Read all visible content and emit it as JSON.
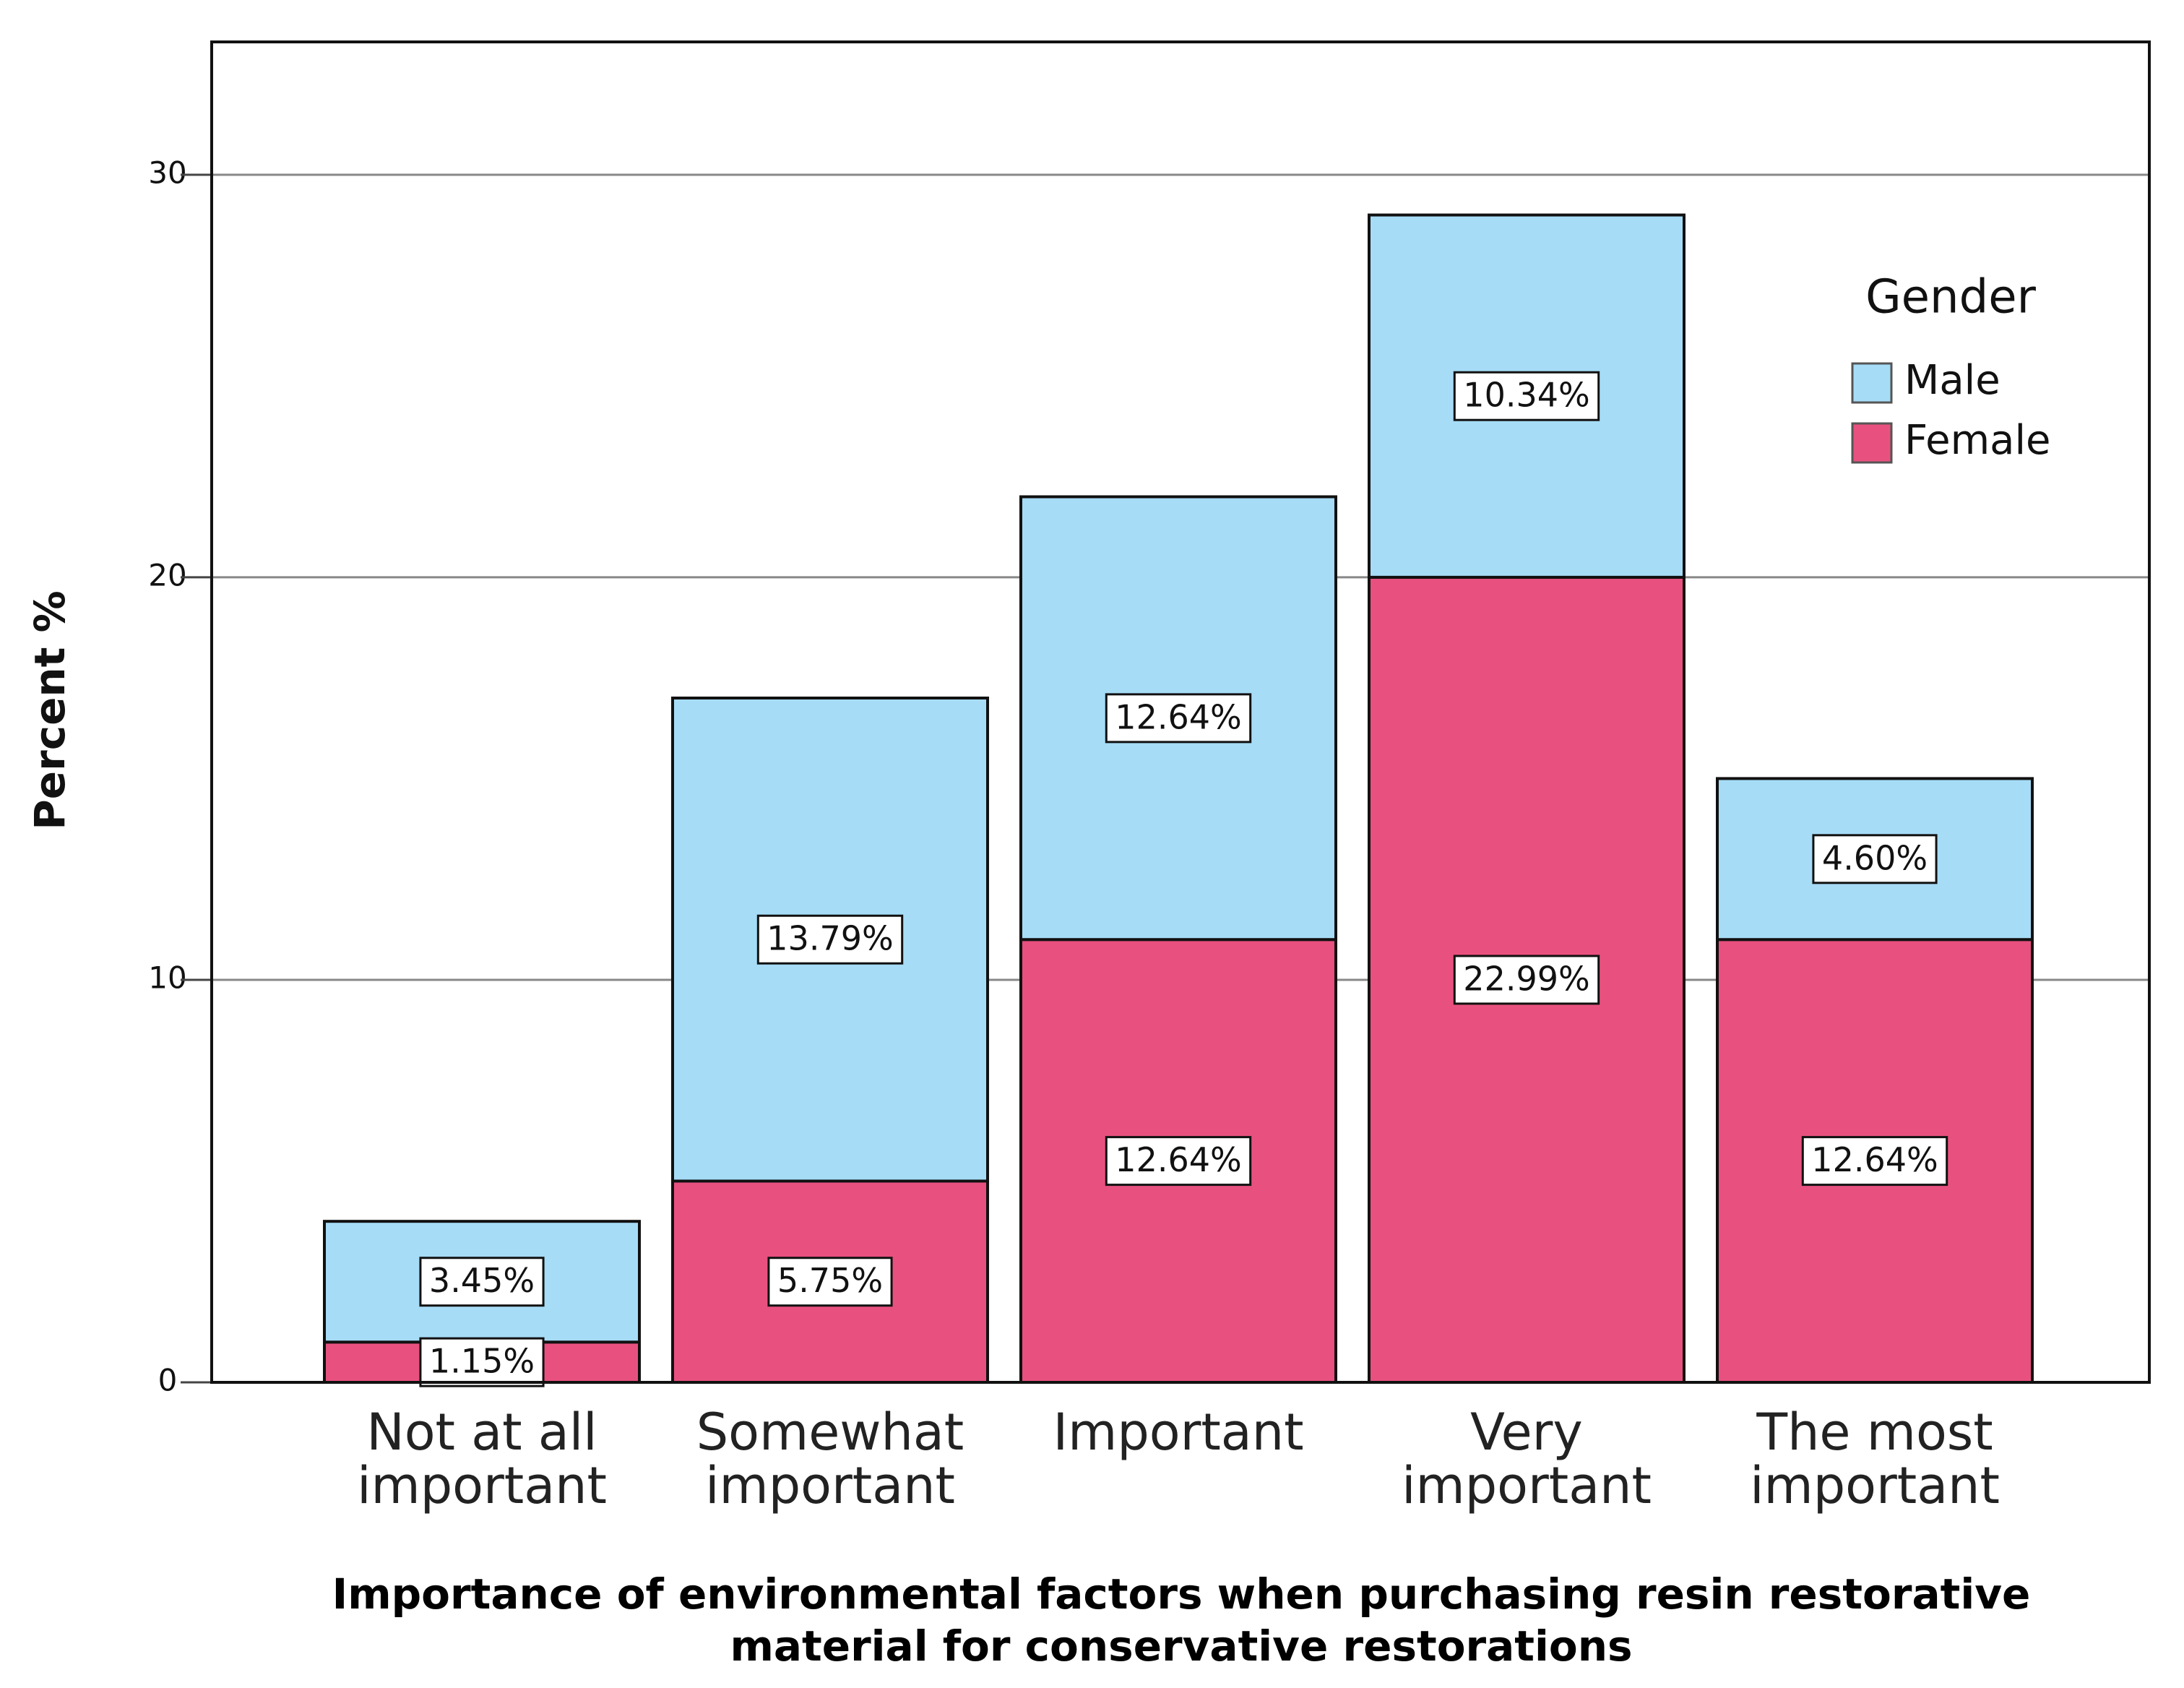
{
  "chart_data": {
    "type": "stacked-bar",
    "x_label": "Importance of environmental factors when purchasing resin restorative material for conservative restorations",
    "y_label": "Percent %",
    "legend_title": "Gender",
    "categories": [
      "Not at all important",
      "Somewhat important",
      "Important",
      "Very important",
      "The most important"
    ],
    "series": [
      {
        "name": "Female",
        "color": "#e8517f",
        "values": [
          1,
          5,
          11,
          20,
          11
        ],
        "labels": [
          "1.15%",
          "5.75%",
          "12.64%",
          "22.99%",
          "12.64%"
        ]
      },
      {
        "name": "Male",
        "color": "#a6dcf6",
        "values": [
          3,
          12,
          11,
          9,
          4
        ],
        "labels": [
          "3.45%",
          "13.79%",
          "12.64%",
          "10.34%",
          "4.60%"
        ]
      }
    ],
    "ylim": [
      0,
      33.3
    ],
    "yticks": [
      0,
      10,
      20,
      30
    ],
    "grid": true,
    "legend": "top-right"
  }
}
